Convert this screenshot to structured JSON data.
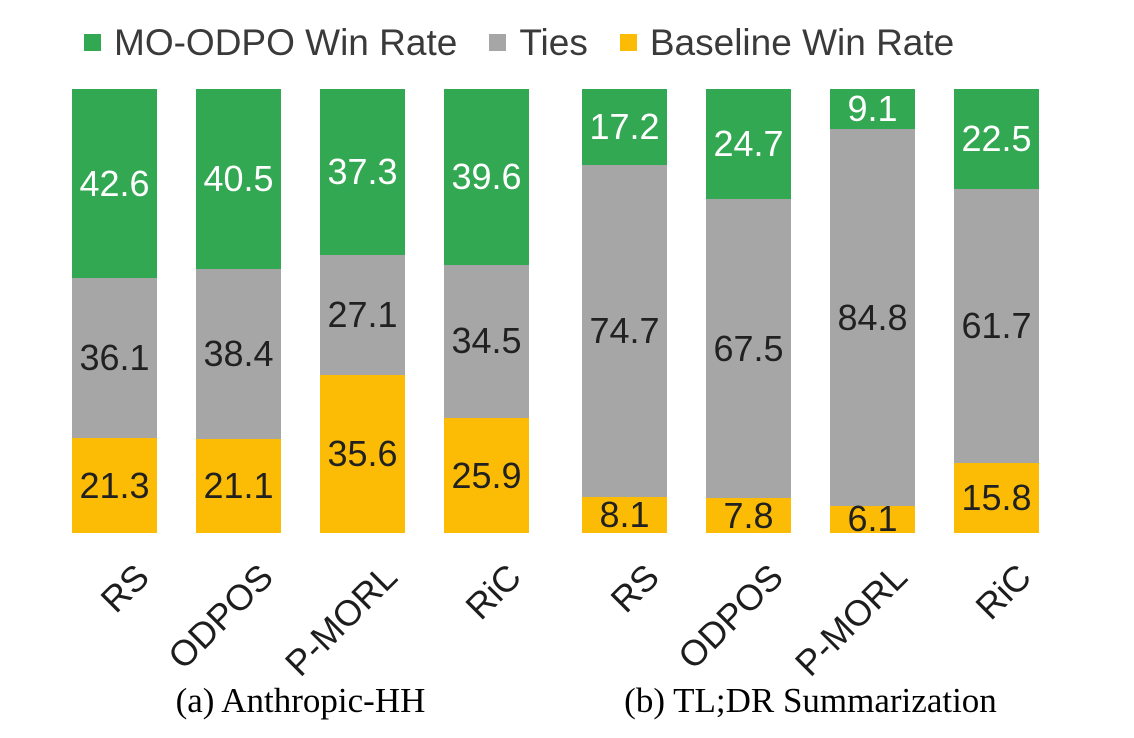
{
  "legend_position": "top",
  "chart_data": [
    {
      "type": "bar",
      "stacked": true,
      "unit": "percent",
      "title": "(a) Anthropic-HH",
      "categories": [
        "RS",
        "ODPOS",
        "P-MORL",
        "RiC"
      ],
      "ylim": [
        0,
        100
      ],
      "grid": false,
      "series": [
        {
          "name": "MO-ODPO Win Rate",
          "color": "#33a852",
          "label_color": "#ffffff",
          "values": [
            42.6,
            40.5,
            37.3,
            39.6
          ]
        },
        {
          "name": "Ties",
          "color": "#a6a6a6",
          "label_color": "#212121",
          "values": [
            36.1,
            38.4,
            27.1,
            34.5
          ]
        },
        {
          "name": "Baseline Win Rate",
          "color": "#fcbc05",
          "label_color": "#212121",
          "values": [
            21.3,
            21.1,
            35.6,
            25.9
          ]
        }
      ]
    },
    {
      "type": "bar",
      "stacked": true,
      "unit": "percent",
      "title": "(b) TL;DR Summarization",
      "categories": [
        "RS",
        "ODPOS",
        "P-MORL",
        "RiC"
      ],
      "ylim": [
        0,
        100
      ],
      "grid": false,
      "series": [
        {
          "name": "MO-ODPO Win Rate",
          "color": "#33a852",
          "label_color": "#ffffff",
          "values": [
            17.2,
            24.7,
            9.1,
            22.5
          ]
        },
        {
          "name": "Ties",
          "color": "#a6a6a6",
          "label_color": "#212121",
          "values": [
            74.7,
            67.5,
            84.8,
            61.7
          ]
        },
        {
          "name": "Baseline Win Rate",
          "color": "#fcbc05",
          "label_color": "#212121",
          "values": [
            8.1,
            7.8,
            6.1,
            15.8
          ]
        }
      ]
    }
  ]
}
